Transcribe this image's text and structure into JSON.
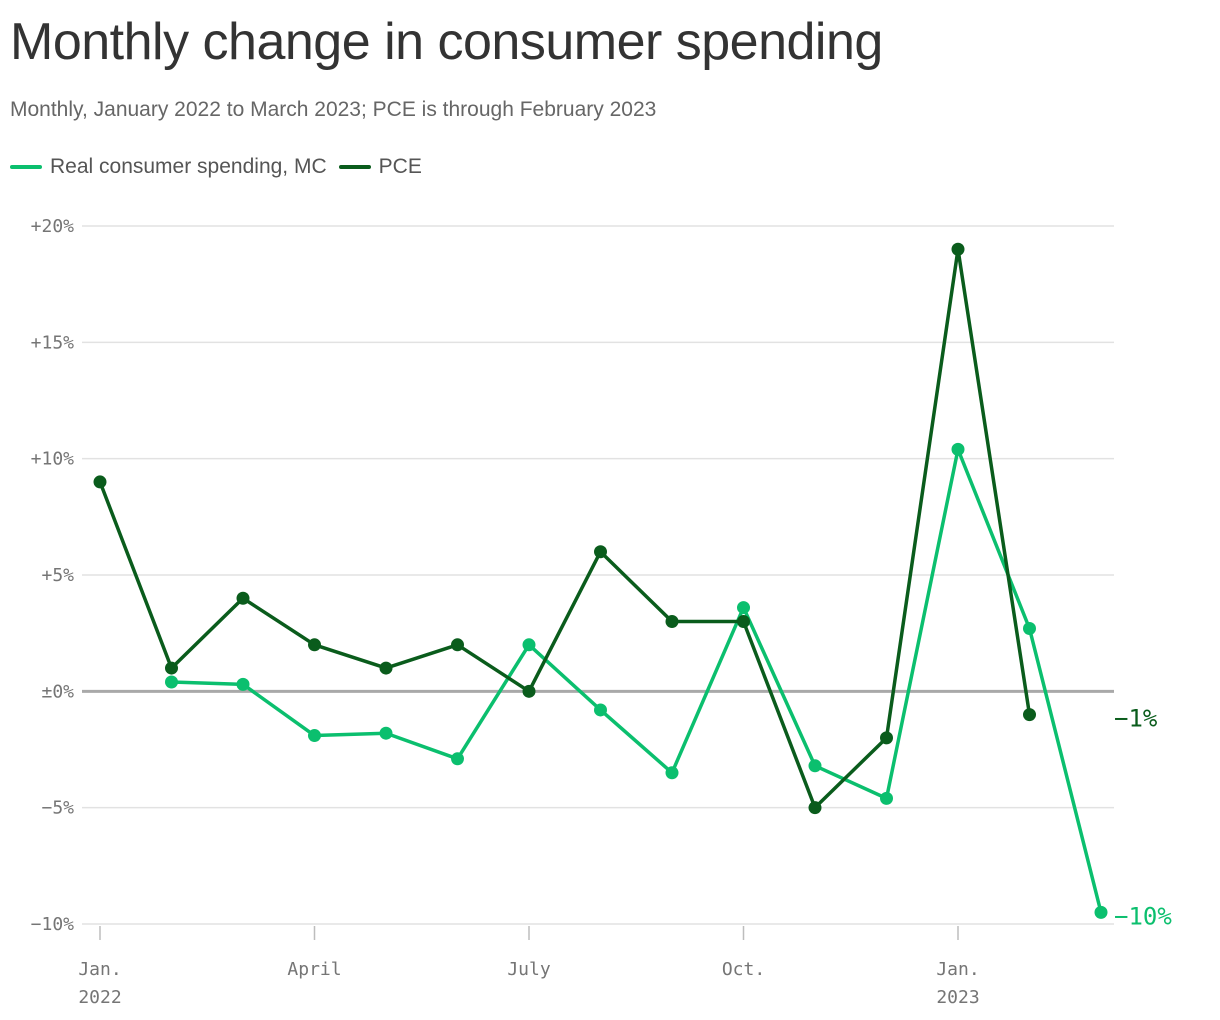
{
  "title": "Monthly change in consumer spending",
  "subtitle": "Monthly, January 2022 to March 2023; PCE is through February 2023",
  "legend": [
    {
      "label": "Real consumer spending, MC",
      "color": "#0bbf6e"
    },
    {
      "label": "PCE",
      "color": "#0a5c1c"
    }
  ],
  "chart_data": {
    "type": "line",
    "x": [
      "2022-01",
      "2022-02",
      "2022-03",
      "2022-04",
      "2022-05",
      "2022-06",
      "2022-07",
      "2022-08",
      "2022-09",
      "2022-10",
      "2022-11",
      "2022-12",
      "2023-01",
      "2023-02",
      "2023-03"
    ],
    "x_tick_labels": [
      {
        "index": 0,
        "line1": "Jan.",
        "line2": "2022"
      },
      {
        "index": 3,
        "line1": "April",
        "line2": ""
      },
      {
        "index": 6,
        "line1": "July",
        "line2": ""
      },
      {
        "index": 9,
        "line1": "Oct.",
        "line2": ""
      },
      {
        "index": 12,
        "line1": "Jan.",
        "line2": "2023"
      }
    ],
    "y_ticks": [
      {
        "value": 20,
        "label": "+20%"
      },
      {
        "value": 15,
        "label": "+15%"
      },
      {
        "value": 10,
        "label": "+10%"
      },
      {
        "value": 5,
        "label": "+5%"
      },
      {
        "value": 0,
        "label": "±0%"
      },
      {
        "value": -5,
        "label": "−5%"
      },
      {
        "value": -10,
        "label": "−10%"
      }
    ],
    "ylim": [
      -10,
      20
    ],
    "grid": true,
    "series": [
      {
        "name": "Real consumer spending, MC",
        "color": "#0bbf6e",
        "values": [
          null,
          0.4,
          0.3,
          -1.9,
          -1.8,
          -2.9,
          2.0,
          -0.8,
          -3.5,
          3.6,
          -3.2,
          -4.6,
          10.4,
          2.7,
          -9.5
        ],
        "end_label": "−10%"
      },
      {
        "name": "PCE",
        "color": "#0a5c1c",
        "values": [
          9.0,
          1.0,
          4.0,
          2.0,
          1.0,
          2.0,
          0.0,
          6.0,
          3.0,
          3.0,
          -5.0,
          -2.0,
          19.0,
          -1.0,
          null
        ],
        "end_label": "−1%"
      }
    ]
  }
}
